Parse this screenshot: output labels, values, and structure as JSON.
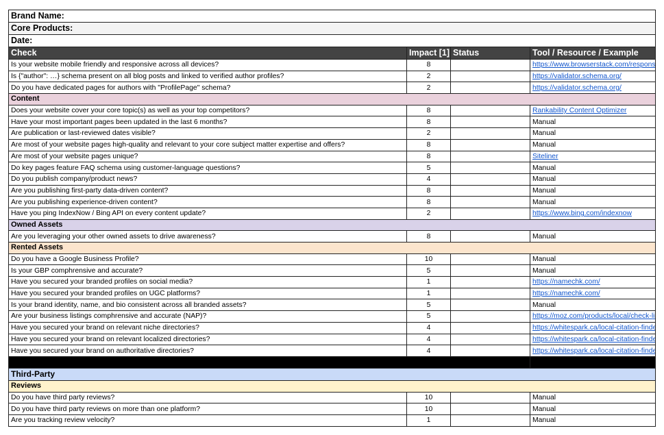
{
  "meta": {
    "brand_name": "Brand Name:",
    "core_products": "Core Products:",
    "date": "Date:"
  },
  "header": {
    "check": "Check",
    "impact": "Impact [1]",
    "status": "Status",
    "tool": "Tool / Resource / Example"
  },
  "colors": {
    "header": "#434343",
    "content": "#ead1dc",
    "owned": "#d9d2e9",
    "rented": "#fce5cd",
    "third_party": "#c9daf8",
    "reviews": "#fff2cc",
    "link": "#1155cc"
  },
  "rows": [
    {
      "check": "Is your website mobile friendly and responsive across all devices?",
      "impact": "8",
      "status": "",
      "tool": "https://www.browserstack.com/responsive",
      "link": true
    },
    {
      "check": "Is {\"author\": …} schema present on all blog posts and linked to verified author profiles?",
      "impact": "2",
      "status": "",
      "tool": "https://validator.schema.org/",
      "link": true
    },
    {
      "check": "Do you have dedicated pages for authors with \"ProfilePage\" schema?",
      "impact": "2",
      "status": "",
      "tool": "https://validator.schema.org/",
      "link": true
    },
    {
      "section": "Content",
      "color": "#ead1dc"
    },
    {
      "check": "Does your website cover your core topic(s) as well as your top competitors?",
      "impact": "8",
      "status": "",
      "tool": "Rankability Content Optimizer",
      "link": true
    },
    {
      "check": "Have your most important pages been updated in the last 6 months?",
      "impact": "8",
      "status": "",
      "tool": "Manual"
    },
    {
      "check": "Are publication or last-reviewed dates visible?",
      "impact": "2",
      "status": "",
      "tool": "Manual"
    },
    {
      "check": "Are most of your website pages high-quality and relevant to your core subject matter expertise and offers?",
      "impact": "8",
      "status": "",
      "tool": "Manual"
    },
    {
      "check": "Are most of your website pages unique?",
      "impact": "8",
      "status": "",
      "tool": "Siteliner",
      "link": true
    },
    {
      "check": "Do key pages feature FAQ schema using customer-language questions?",
      "impact": "5",
      "status": "",
      "tool": "Manual"
    },
    {
      "check": "Do you publish company/product news?",
      "impact": "4",
      "status": "",
      "tool": "Manual"
    },
    {
      "check": "Are you publishing first-party data-driven content?",
      "impact": "8",
      "status": "",
      "tool": "Manual"
    },
    {
      "check": "Are you publishing experience-driven content?",
      "impact": "8",
      "status": "",
      "tool": "Manual"
    },
    {
      "check": "Have you ping IndexNow / Bing API on every content update?",
      "impact": "2",
      "status": "",
      "tool": "https://www.bing.com/indexnow",
      "link": true
    },
    {
      "section": "Owned Assets",
      "color": "#d9d2e9"
    },
    {
      "check": "Are you leveraging your other owned assets to drive awareness?",
      "impact": "8",
      "status": "",
      "tool": "Manual"
    },
    {
      "section": "Rented Assets",
      "color": "#fce5cd"
    },
    {
      "check": "Do you have a Google Business Profile?",
      "impact": "10",
      "status": "",
      "tool": "Manual"
    },
    {
      "check": "Is your GBP comphrensive and accurate?",
      "impact": "5",
      "status": "",
      "tool": "Manual"
    },
    {
      "check": "Have you secured your branded profiles on social media?",
      "impact": "1",
      "status": "",
      "tool": "https://namechk.com/",
      "link": true
    },
    {
      "check": "Have you secured your branded profiles on UGC platforms?",
      "impact": "1",
      "status": "",
      "tool": "https://namechk.com/",
      "link": true
    },
    {
      "check": "Is your brand identity, name, and bio consistent across all branded assets?",
      "impact": "5",
      "status": "",
      "tool": "Manual"
    },
    {
      "check": "Are your business listings comphrensive and accurate (NAP)?",
      "impact": "5",
      "status": "",
      "tool": "https://moz.com/products/local/check-listing",
      "link": true
    },
    {
      "check": "Have you secured your brand on relevant niche directories?",
      "impact": "4",
      "status": "",
      "tool": "https://whitespark.ca/local-citation-finder/",
      "link": true
    },
    {
      "check": "Have you secured your brand on relevant localized directories?",
      "impact": "4",
      "status": "",
      "tool": "https://whitespark.ca/local-citation-finder/",
      "link": true
    },
    {
      "check": "Have you secured your brand on authoritative directories?",
      "impact": "4",
      "status": "",
      "tool": "https://whitespark.ca/local-citation-finder/",
      "link": true
    },
    {
      "black": true
    },
    {
      "section": "Third-Party",
      "color": "#c9daf8",
      "big": true
    },
    {
      "section": "Reviews",
      "color": "#fff2cc"
    },
    {
      "check": "Do you have third party reviews?",
      "impact": "10",
      "status": "",
      "tool": "Manual"
    },
    {
      "check": "Do you have third party reviews on more than one platform?",
      "impact": "10",
      "status": "",
      "tool": "Manual"
    },
    {
      "check": "Are you tracking review velocity?",
      "impact": "1",
      "status": "",
      "tool": "Manual"
    }
  ]
}
